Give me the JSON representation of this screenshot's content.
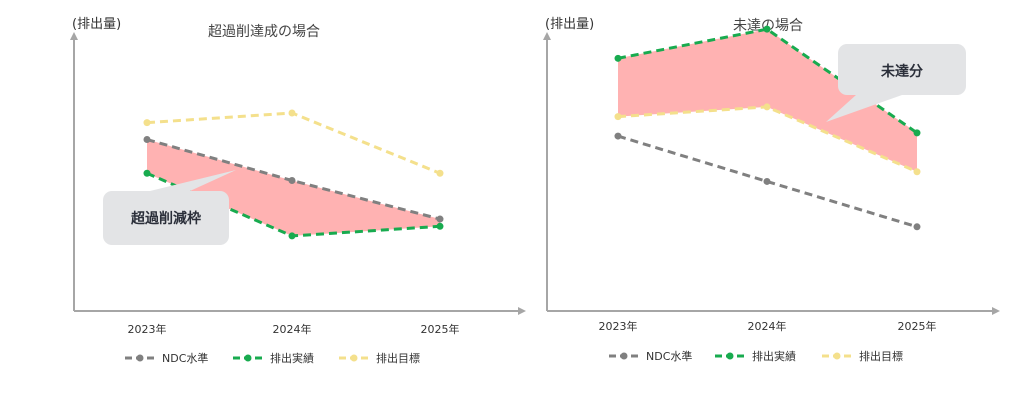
{
  "charts": [
    {
      "id": "left",
      "type": "line",
      "title": "超過削達成の場合",
      "ylabel": "(排出量)",
      "categories": [
        "2023年",
        "2024年",
        "2025年"
      ],
      "series": [
        {
          "name": "NDC水準",
          "values": [
            67,
            50,
            34
          ],
          "color": "#808080"
        },
        {
          "name": "排出実績",
          "values": [
            53,
            27,
            31
          ],
          "color": "#18ab4f"
        },
        {
          "name": "排出目標",
          "values": [
            74,
            78,
            53
          ],
          "color": "#f4e08c"
        }
      ],
      "callout": "超過削減枠",
      "fill": {
        "upper": "NDC水準",
        "lower": "排出実績",
        "color": "#ffb2b2"
      }
    },
    {
      "id": "right",
      "type": "line",
      "title": "未達の場合",
      "ylabel": "(排出量)",
      "categories": [
        "2023年",
        "2024年",
        "2025年"
      ],
      "series": [
        {
          "name": "NDC水準",
          "values": [
            58,
            44,
            30
          ],
          "color": "#808080"
        },
        {
          "name": "排出実績",
          "values": [
            82,
            91,
            59
          ],
          "color": "#18ab4f"
        },
        {
          "name": "排出目標",
          "values": [
            64,
            67,
            47
          ],
          "color": "#f4e08c"
        }
      ],
      "callout": "未達分",
      "fill": {
        "upper": "排出実績",
        "lower": "排出目標",
        "color": "#ffb2b2"
      }
    }
  ],
  "legend": [
    "NDC水準",
    "排出実績",
    "排出目標"
  ],
  "chart_data": [
    {
      "type": "line",
      "title": "超過削達成の場合",
      "ylabel": "(排出量)",
      "xlabel": "",
      "categories": [
        "2023年",
        "2024年",
        "2025年"
      ],
      "series": [
        {
          "name": "NDC水準",
          "values": [
            67,
            50,
            34
          ]
        },
        {
          "name": "排出実績",
          "values": [
            53,
            27,
            31
          ]
        },
        {
          "name": "排出目標",
          "values": [
            74,
            78,
            53
          ]
        }
      ],
      "annotations": [
        "超過削減枠"
      ],
      "legend": "bottom"
    },
    {
      "type": "line",
      "title": "未達の場合",
      "ylabel": "(排出量)",
      "xlabel": "",
      "categories": [
        "2023年",
        "2024年",
        "2025年"
      ],
      "series": [
        {
          "name": "NDC水準",
          "values": [
            58,
            44,
            30
          ]
        },
        {
          "name": "排出実績",
          "values": [
            82,
            91,
            59
          ]
        },
        {
          "name": "排出目標",
          "values": [
            64,
            67,
            47
          ]
        }
      ],
      "annotations": [
        "未達分"
      ],
      "legend": "bottom"
    }
  ]
}
